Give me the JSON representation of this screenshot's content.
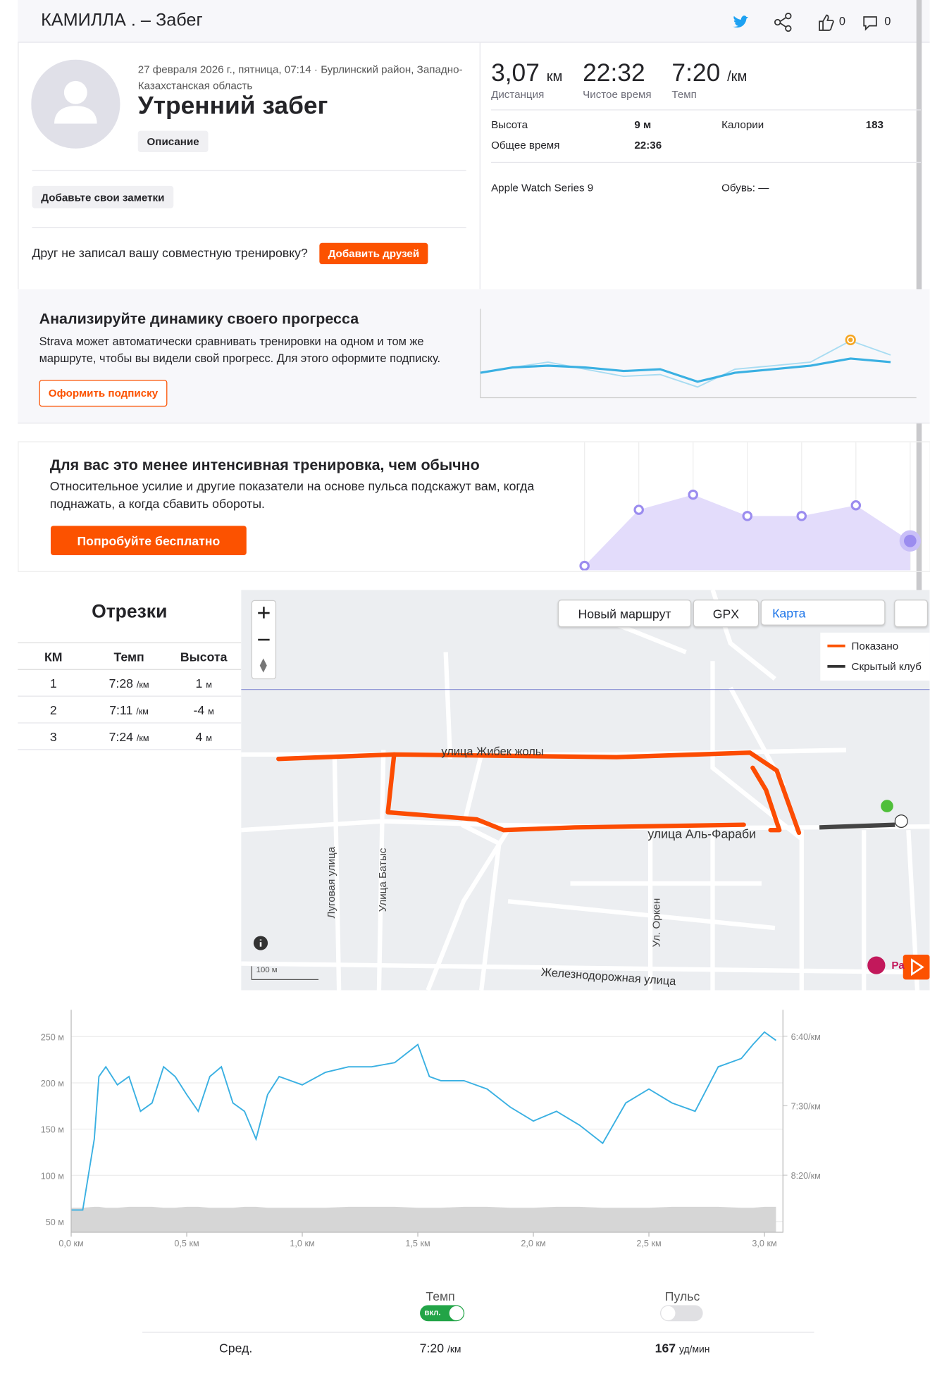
{
  "header": {
    "title": "КАМИЛЛА . – Забег",
    "kudos": "0",
    "comments": "0"
  },
  "activity": {
    "meta": "27 февраля 2026 г., пятница, 07:14 · Бурлинский район, Западно-Казахстанская область",
    "name": "Утренний забег",
    "description_button": "Описание",
    "notes_button": "Добавьте свои заметки",
    "friends_text": "Друг не записал вашу совместную тренировку?",
    "friends_button": "Добавить друзей"
  },
  "stats": {
    "primary": [
      {
        "value": "3,07",
        "unit": "км",
        "label": "Дистанция"
      },
      {
        "value": "22:32",
        "label": "Чистое время"
      },
      {
        "value": "7:20",
        "unit": "/км",
        "label": "Темп"
      }
    ],
    "secondary": [
      {
        "label": "Высота",
        "value": "9 м"
      },
      {
        "label": "Калории",
        "value": "183"
      },
      {
        "label": "Общее время",
        "value": "22:36"
      }
    ],
    "device": "Apple Watch Series 9",
    "shoes": "Обувь: —"
  },
  "promo_progress": {
    "title": "Анализируйте динамику своего прогресса",
    "text": "Strava может автоматически сравнивать тренировки на одном и том же маршруте, чтобы вы видели свой прогресс. Для этого оформите подписку.",
    "button": "Оформить подписку"
  },
  "promo_intensity": {
    "title": "Для вас это менее интенсивная тренировка, чем обычно",
    "text": "Относительное усилие и другие показатели на основе пульса подскажут вам, когда поднажать, а когда сбавить обороты.",
    "button": "Попробуйте бесплатно"
  },
  "splits": {
    "title": "Отрезки",
    "columns": [
      "КМ",
      "Темп",
      "Высота"
    ],
    "rows": [
      {
        "km": "1",
        "pace": "7:28",
        "pace_unit": "/км",
        "elev": "1",
        "elev_unit": "м"
      },
      {
        "km": "2",
        "pace": "7:11",
        "pace_unit": "/км",
        "elev": "-4",
        "elev_unit": "м"
      },
      {
        "km": "3",
        "pace": "7:24",
        "pace_unit": "/км",
        "elev": "4",
        "elev_unit": "м"
      }
    ]
  },
  "map": {
    "buttons": [
      "Новый маршрут",
      "GPX"
    ],
    "map_type": "Карта",
    "legend": [
      "Показано",
      "Скрытый клуб"
    ],
    "streets": [
      "улица Жибек жолы",
      "улица Аль-Фараби",
      "Луговая улица",
      "Улица Батыс",
      "Ул. Оркен",
      "Железнодорожная улица"
    ],
    "poi": "Ра",
    "scale": "100 м"
  },
  "pace_chart": {
    "type": "line",
    "x": [
      0,
      0.05,
      0.1,
      0.12,
      0.15,
      0.2,
      0.25,
      0.3,
      0.35,
      0.4,
      0.45,
      0.5,
      0.55,
      0.6,
      0.65,
      0.7,
      0.75,
      0.8,
      0.85,
      0.9,
      1.0,
      1.1,
      1.2,
      1.3,
      1.4,
      1.5,
      1.55,
      1.6,
      1.7,
      1.8,
      1.9,
      2.0,
      2.1,
      2.2,
      2.3,
      2.4,
      2.5,
      2.6,
      2.7,
      2.8,
      2.9,
      2.95,
      3.0,
      3.05
    ],
    "series": [
      {
        "color": "#3ab0e2",
        "axis": "y2",
        "values": [
          525,
          525,
          474,
          429,
          422,
          435,
          429,
          454,
          448,
          422,
          429,
          442,
          454,
          429,
          422,
          448,
          454,
          474,
          442,
          429,
          435,
          426,
          422,
          422,
          419,
          406,
          429,
          432,
          432,
          438,
          451,
          461,
          454,
          464,
          477,
          448,
          438,
          448,
          454,
          422,
          416,
          406,
          397,
          403
        ]
      },
      {
        "color": "#d6d6d6",
        "values": [
          65,
          65,
          66,
          66,
          65,
          65,
          66,
          66,
          66,
          65,
          65,
          66,
          66,
          65,
          65,
          65,
          66,
          66,
          65,
          65,
          65,
          65,
          66,
          66,
          66,
          65,
          65,
          65,
          66,
          66,
          65,
          65,
          66,
          66,
          65,
          65,
          65,
          66,
          66,
          66,
          65,
          65,
          66,
          66
        ]
      }
    ],
    "xlim": [
      0,
      3.08
    ],
    "ylim": [
      38.5,
      279
    ],
    "y2lim": [
      541,
      381
    ],
    "xticks": [
      {
        "value": 0,
        "label": "0,0 км"
      },
      {
        "value": 0.5,
        "label": "0,5 км"
      },
      {
        "value": 1,
        "label": "1,0 км"
      },
      {
        "value": 1.5,
        "label": "1,5 км"
      },
      {
        "value": 2,
        "label": "2,0 км"
      },
      {
        "value": 2.5,
        "label": "2,5 км"
      },
      {
        "value": 3,
        "label": "3,0 км"
      }
    ],
    "yticks": [
      {
        "value": 50,
        "label": "50 м"
      },
      {
        "value": 100,
        "label": "100 м"
      },
      {
        "value": 150,
        "label": "150 м"
      },
      {
        "value": 200,
        "label": "200 м"
      },
      {
        "value": 250,
        "label": "250 м"
      }
    ],
    "y2ticks": [
      {
        "value": 400,
        "label": "6:40/км"
      },
      {
        "value": 450,
        "label": "7:30/км"
      },
      {
        "value": 500,
        "label": "8:20/км"
      }
    ],
    "grid": true
  },
  "controls": {
    "toggles": [
      {
        "label": "Темп",
        "state": "вкл."
      },
      {
        "label": "Пульс"
      }
    ],
    "summary": {
      "label": "Сред.",
      "pace": "7:20",
      "pace_unit": "/км",
      "hr": "167",
      "hr_unit": "уд/мин"
    }
  }
}
